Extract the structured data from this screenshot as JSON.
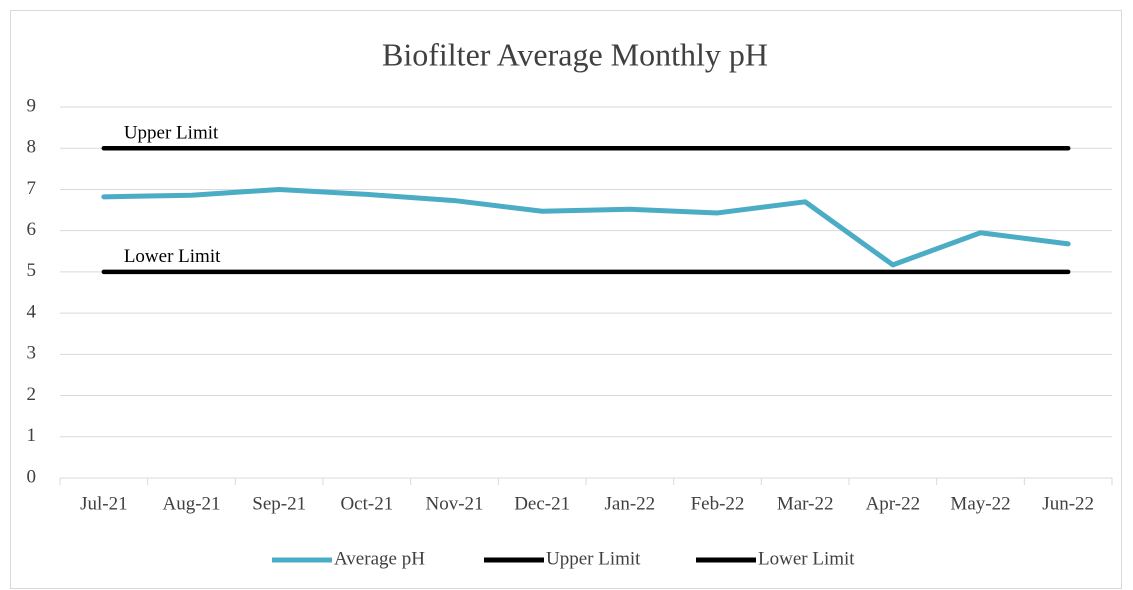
{
  "chart_data": {
    "type": "line",
    "title": "Biofilter Average Monthly pH",
    "categories": [
      "Jul-21",
      "Aug-21",
      "Sep-21",
      "Oct-21",
      "Nov-21",
      "Dec-21",
      "Jan-22",
      "Feb-22",
      "Mar-22",
      "Apr-22",
      "May-22",
      "Jun-22"
    ],
    "series": [
      {
        "name": "Average pH",
        "color": "#4bacc6",
        "values": [
          6.82,
          6.86,
          7.0,
          6.88,
          6.73,
          6.47,
          6.52,
          6.43,
          6.7,
          5.17,
          5.95,
          5.68
        ]
      },
      {
        "name": "Upper Limit",
        "color": "#000000",
        "values": [
          8,
          8,
          8,
          8,
          8,
          8,
          8,
          8,
          8,
          8,
          8,
          8
        ]
      },
      {
        "name": "Lower Limit",
        "color": "#000000",
        "values": [
          5,
          5,
          5,
          5,
          5,
          5,
          5,
          5,
          5,
          5,
          5,
          5
        ]
      }
    ],
    "annotations": [
      "Upper Limit",
      "Lower Limit"
    ],
    "ylim": [
      0,
      9
    ],
    "yticks": [
      0,
      1,
      2,
      3,
      4,
      5,
      6,
      7,
      8,
      9
    ],
    "grid": true,
    "legend": "bottom"
  }
}
